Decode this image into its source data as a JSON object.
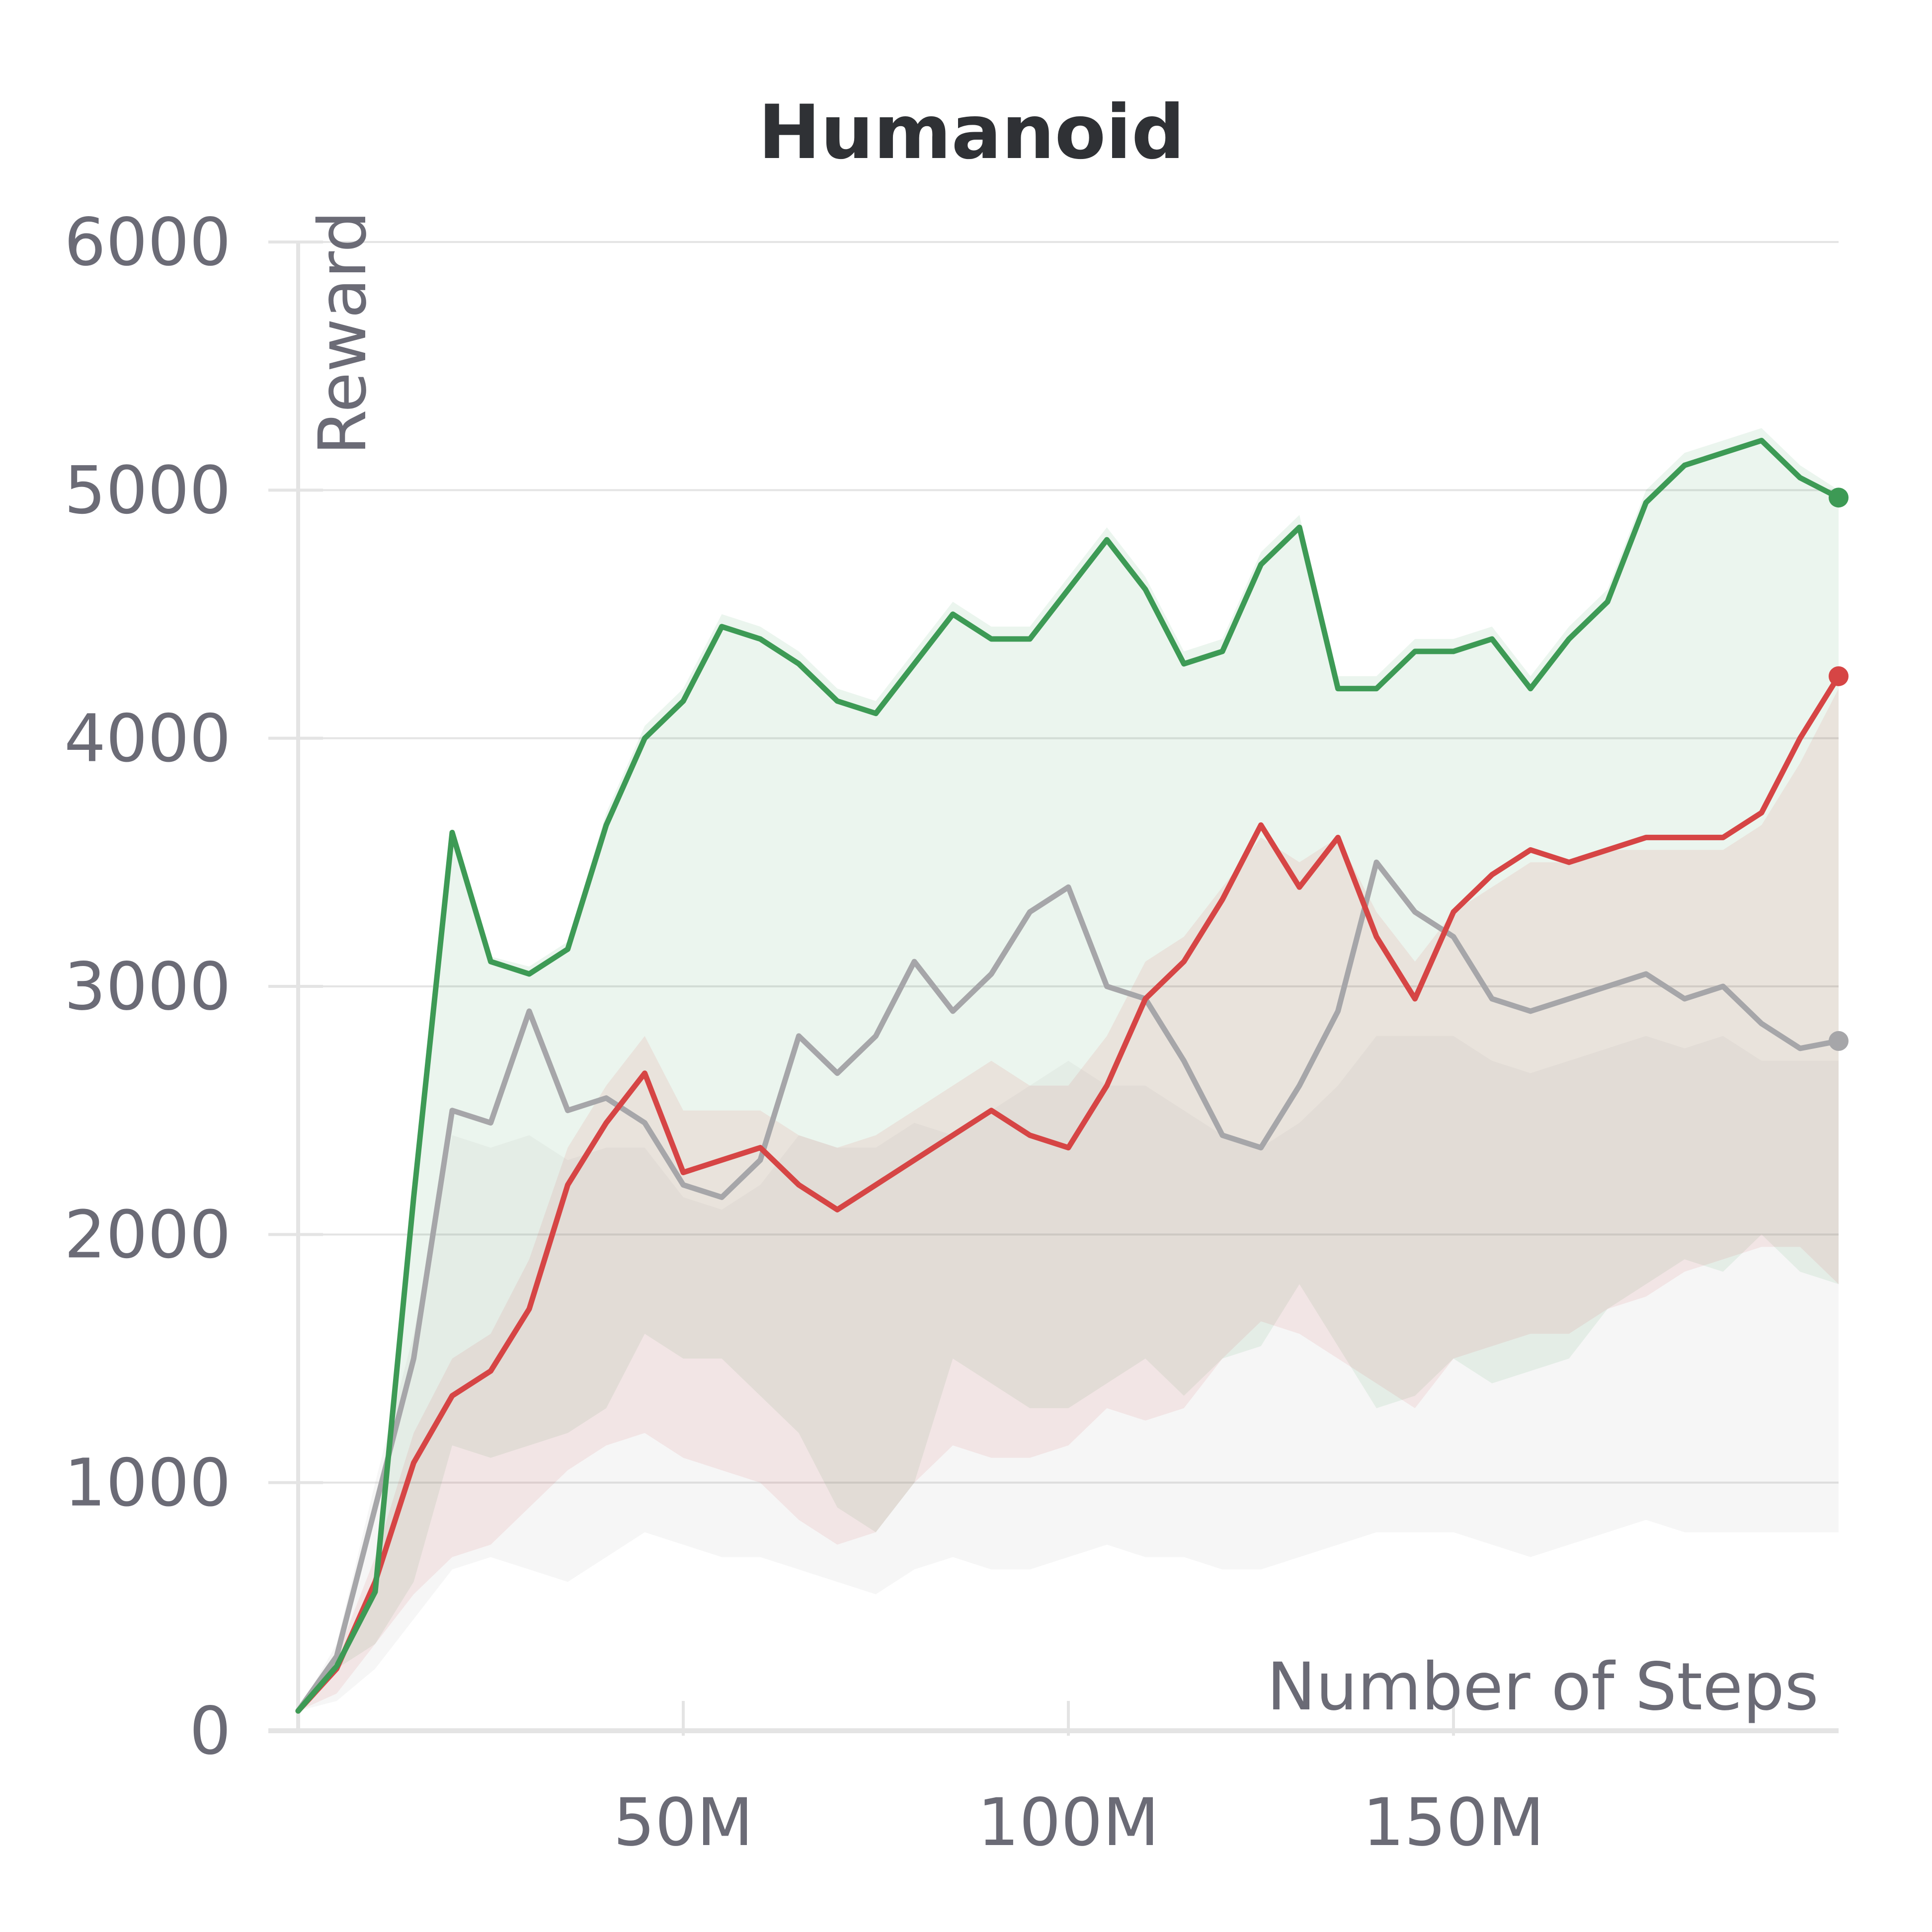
{
  "chart_data": {
    "type": "line",
    "title": "Humanoid",
    "xlabel": "Number of Steps",
    "ylabel": "Reward",
    "xlim": [
      0,
      200000000
    ],
    "ylim": [
      0,
      6000
    ],
    "x_ticks": [
      {
        "value": 50000000,
        "label": "50M"
      },
      {
        "value": 100000000,
        "label": "100M"
      },
      {
        "value": 150000000,
        "label": "150M"
      }
    ],
    "y_ticks": [
      {
        "value": 0,
        "label": "0"
      },
      {
        "value": 1000,
        "label": "1000"
      },
      {
        "value": 2000,
        "label": "2000"
      },
      {
        "value": 3000,
        "label": "3000"
      },
      {
        "value": 4000,
        "label": "4000"
      },
      {
        "value": 5000,
        "label": "5000"
      },
      {
        "value": 6000,
        "label": "6000"
      }
    ],
    "grid": true,
    "legend": "none",
    "x_step_millions": 5,
    "series": [
      {
        "color": "#3d9a55",
        "band_color": "#3d9a55",
        "values": [
          80,
          260,
          560,
          2150,
          3620,
          3100,
          3050,
          3150,
          3650,
          4000,
          4150,
          4450,
          4400,
          4300,
          4150,
          4100,
          4300,
          4500,
          4400,
          4400,
          4600,
          4800,
          4600,
          4300,
          4350,
          4700,
          4850,
          4200,
          4200,
          4350,
          4350,
          4400,
          4200,
          4400,
          4550,
          4950,
          5100,
          5150,
          5200,
          5050,
          4970
        ],
        "lower": [
          80,
          250,
          350,
          600,
          1150,
          1100,
          1150,
          1200,
          1300,
          1600,
          1500,
          1500,
          1350,
          1200,
          900,
          800,
          1000,
          1500,
          1400,
          1300,
          1300,
          1400,
          1500,
          1350,
          1500,
          1550,
          1800,
          1550,
          1300,
          1350,
          1500,
          1400,
          1450,
          1500,
          1700,
          1800,
          1900,
          1850,
          2000,
          1850,
          1800
        ],
        "upper": [
          80,
          270,
          600,
          2200,
          3620,
          3120,
          3080,
          3180,
          3700,
          4050,
          4200,
          4500,
          4450,
          4350,
          4200,
          4150,
          4350,
          4550,
          4450,
          4450,
          4650,
          4850,
          4650,
          4350,
          4400,
          4750,
          4900,
          4250,
          4250,
          4400,
          4400,
          4450,
          4250,
          4450,
          4600,
          5000,
          5150,
          5200,
          5250,
          5100,
          5000
        ]
      },
      {
        "color": "#d64545",
        "band_color": "#d64545",
        "values": [
          80,
          250,
          600,
          1080,
          1350,
          1450,
          1700,
          2200,
          2450,
          2650,
          2250,
          2300,
          2350,
          2200,
          2100,
          2200,
          2300,
          2400,
          2500,
          2400,
          2350,
          2600,
          2950,
          3100,
          3350,
          3650,
          3400,
          3600,
          3200,
          2950,
          3300,
          3450,
          3550,
          3500,
          3550,
          3600,
          3600,
          3600,
          3700,
          4000,
          4250
        ],
        "lower": [
          80,
          150,
          350,
          550,
          700,
          750,
          900,
          1050,
          1150,
          1200,
          1100,
          1050,
          1000,
          850,
          750,
          800,
          1000,
          1150,
          1100,
          1100,
          1150,
          1300,
          1250,
          1300,
          1500,
          1650,
          1600,
          1500,
          1400,
          1300,
          1500,
          1550,
          1600,
          1600,
          1700,
          1750,
          1850,
          1900,
          1950,
          1950,
          1800
        ],
        "upper": [
          80,
          300,
          700,
          1200,
          1500,
          1600,
          1900,
          2350,
          2600,
          2800,
          2500,
          2500,
          2500,
          2400,
          2350,
          2400,
          2500,
          2600,
          2700,
          2600,
          2600,
          2800,
          3100,
          3200,
          3400,
          3600,
          3500,
          3600,
          3300,
          3100,
          3300,
          3400,
          3500,
          3500,
          3550,
          3550,
          3550,
          3550,
          3650,
          3900,
          4200
        ]
      },
      {
        "color": "#a6a6a9",
        "band_color": "#a6a6a9",
        "values": [
          80,
          300,
          900,
          1500,
          2500,
          2450,
          2900,
          2500,
          2550,
          2450,
          2200,
          2150,
          2300,
          2800,
          2650,
          2800,
          3100,
          2900,
          3050,
          3300,
          3400,
          3000,
          2950,
          2700,
          2400,
          2350,
          2600,
          2900,
          3500,
          3300,
          3200,
          2950,
          2900,
          2950,
          3000,
          3050,
          2950,
          3000,
          2850,
          2750,
          2780
        ],
        "lower": [
          80,
          120,
          250,
          450,
          650,
          700,
          650,
          600,
          700,
          800,
          750,
          700,
          700,
          650,
          600,
          550,
          650,
          700,
          650,
          650,
          700,
          750,
          700,
          700,
          650,
          650,
          700,
          750,
          800,
          800,
          800,
          750,
          700,
          750,
          800,
          850,
          800,
          800,
          800,
          800,
          800
        ],
        "upper": [
          80,
          350,
          1000,
          1600,
          2400,
          2350,
          2400,
          2300,
          2350,
          2350,
          2150,
          2100,
          2200,
          2400,
          2350,
          2350,
          2450,
          2400,
          2500,
          2600,
          2700,
          2600,
          2600,
          2500,
          2400,
          2350,
          2450,
          2600,
          2800,
          2800,
          2800,
          2700,
          2650,
          2700,
          2750,
          2800,
          2750,
          2800,
          2700,
          2700,
          2700
        ]
      }
    ]
  }
}
